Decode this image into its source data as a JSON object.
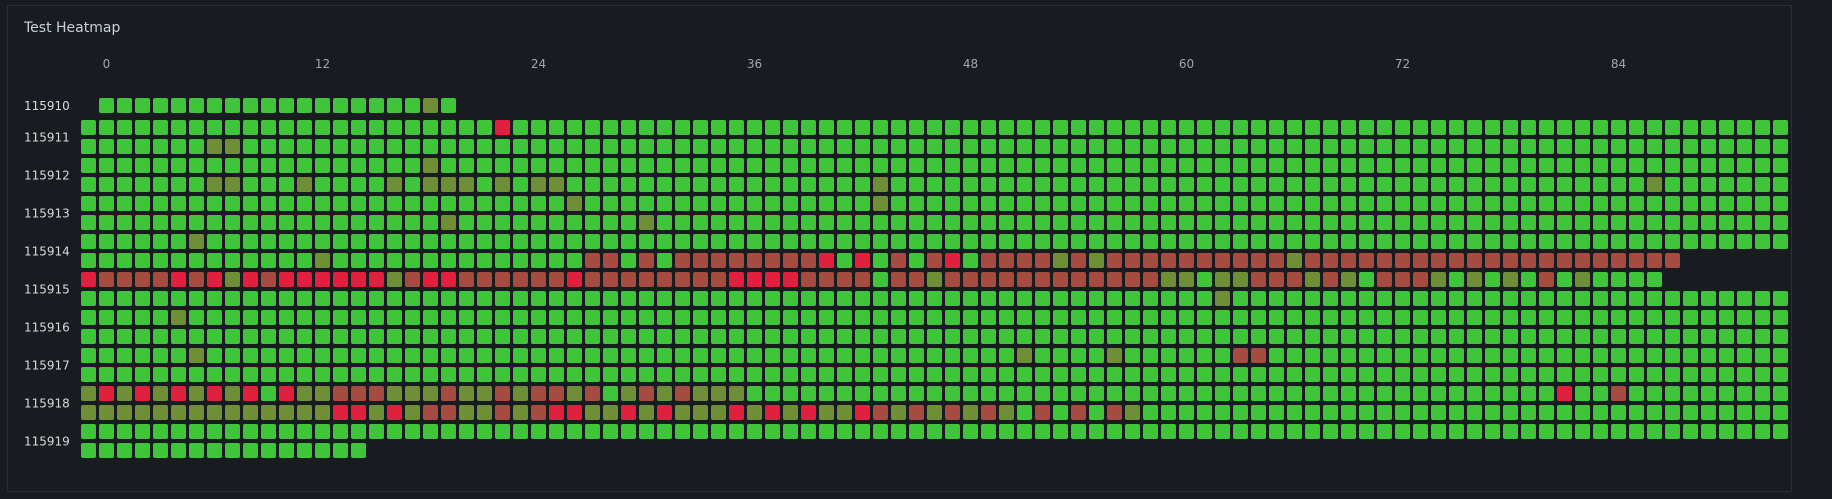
{
  "panel": {
    "title": "Test Heatmap"
  },
  "colors": {
    "background": "#181b1f",
    "pass": "#3ec53a",
    "mostly_pass": "#4fb538",
    "mixed": "#6f8f37",
    "mostly_fail": "#a64b3f",
    "fail": "#e0203d",
    "empty": "#1e2126"
  },
  "chart_data": {
    "type": "heatmap",
    "title": "Test Heatmap",
    "x_ticks": [
      0,
      12,
      24,
      36,
      48,
      60,
      72,
      84
    ],
    "x_range": [
      0,
      95
    ],
    "rows": [
      {
        "label": "115910",
        "lines": [
          {
            "start": 0,
            "cells": "ppppppppppppppppppmp"
          }
        ]
      },
      {
        "label": "115911",
        "lines": [
          {
            "start": -1,
            "cells": "pppppppppppppppppppppppFppppppppppppppppppppppppppppppppppppppppppppppppppppppppppppppppppppppppppppppppppppppppppppppppppppppppppppppppppppppppppppppp"
          },
          {
            "start": -1,
            "cells": "pppppppmmpppppppppppppppppppppppppppppppppppppppppppppppppppppppppppppppppppppppppppppppppppppppppppppppppppppppppppppppppppppppp"
          }
        ]
      },
      {
        "label": "115912",
        "lines": [
          {
            "start": -1,
            "cells": "pppppppppppppppppppmppppppppppppppppppppppppppppppppppppppppppppppppppppppppppppppppppppppppppppppppppppppppppppppppppppppppppppppppppppppppppppppppppp"
          },
          {
            "start": -1,
            "cells": "pppppppmmpppmppppmpmmmpmpmmpppppppppppppppppmppppppppppppppppppppppppppppppppppppppppppmpppppppppppppppppppppppppppppppppppppp"
          }
        ]
      },
      {
        "label": "115913",
        "lines": [
          {
            "start": -1,
            "cells": "pppppppppppppppppppppppppppmppppppppppppppppmpppppppppppppppppppppppppppppppppppppppppppppppppppppppppppppppppppppppppppppppppppppppmp"
          },
          {
            "start": -1,
            "cells": "ppppppppppppppppppppmppppppppppmpppppppppppppppppppppppppppppppppppppppppppppppppppppppppppppppppppppppppppppppppppppppppppp"
          }
        ]
      },
      {
        "label": "115914",
        "lines": [
          {
            "start": -1,
            "cells": "ppppppmpppppppppppppppppppppppppppppppppppppppppppppppppppppppppppppppppppppppppppppppppppppppppppppppppppppppppppppppppppppppppppppppppppppppppppppp"
          },
          {
            "start": -1,
            "cells": "pppppppppppppmppppppppppppppffpfpffffffffFpFpfpfFpffffmfmffffffffffmfffffffffffffffffffff"
          }
        ]
      },
      {
        "label": "115915",
        "lines": [
          {
            "start": -1,
            "cells": "FffffFfFmFfFFFFFFmfFFffffffFffffffffFFFFffffpffmffffffffffffmmpmmfffmfmpfffmpmpmpfpmpppp"
          },
          {
            "start": -1,
            "cells": "pppppppppppppppppppppppppppppppppppppppppppppppppppppppppppppppmppppppppppppppppppppppppppppppppppppppppppppppp"
          }
        ]
      },
      {
        "label": "115916",
        "lines": [
          {
            "start": -1,
            "cells": "pppppmpppppppppppppppppppppppppppppppppppppppppppppppppppppppppppppppppppppppppppppppppppppppppppppppppppppppppppppppppppppppppppppppppppppppppppppppppp"
          },
          {
            "start": -1,
            "cells": "ppppppppppppppppppppppppppppppppppppppppppppppppppppppppppppppppppppppppppppppppppppppppppppppppppppppppppppppppppppppppppppppppppppppppp"
          }
        ]
      },
      {
        "label": "115917",
        "lines": [
          {
            "start": -1,
            "cells": "ppppppmpppppppppppppppppppppppppppppppppppppppppppppmppppmppppppffppppppppppppppppppppppppppppppppppppppppppppppppppppppppppppppppppppppp"
          },
          {
            "start": -1,
            "cells": "ppppppppppppppppppppppppppppppppppppppppppppppppppppppppppppppppppppppppppppppppppppppppppppppppppppppppppppppppppppppppppppFFpF"
          }
        ]
      },
      {
        "label": "115918",
        "lines": [
          {
            "start": -1,
            "cells": "mFmFmFmFmFpFmmfffmmmfmmfmffmfpmfmfmmmpppppppppppppppppppppppppppppppppppppppppppppFppfpppppppppppppppppppppp"
          },
          {
            "start": -1,
            "cells": "mmmmmmmmmmmmmmFFmFmffmmfmfFFmmFmFmmmFmFmFmmFfmfmfmfmpfpfpfmpppppppppppppppppppppppppppppppppppppppppppppppppppp"
          }
        ]
      },
      {
        "label": "115919",
        "lines": [
          {
            "start": -1,
            "cells": "ppppppppppppppppppppppppppppppppppppppppppppppppppppppppppppppppppppppppppppppppppppppppppppppppppppppppppppppppppppppppppppppppppppppppppppppp"
          },
          {
            "start": -1,
            "cells": "pppppppppppppppp"
          }
        ]
      }
    ],
    "legend": {
      "p": "pass",
      "m": "mixed",
      "f": "mostly_fail",
      "F": "fail"
    }
  }
}
